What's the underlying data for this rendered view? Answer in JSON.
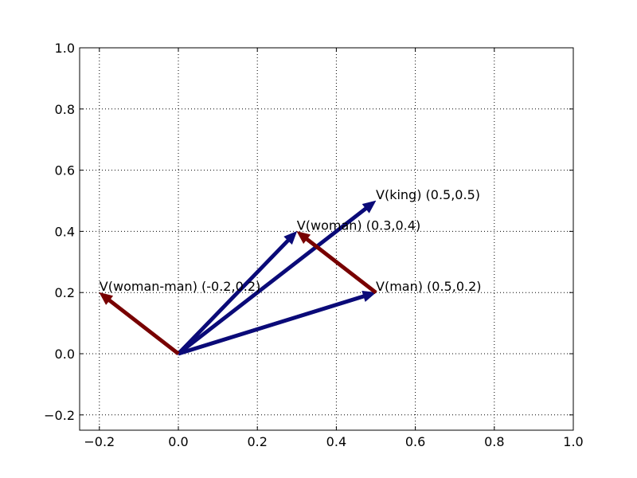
{
  "chart_data": {
    "type": "quiver",
    "title": "",
    "xlabel": "",
    "ylabel": "",
    "xlim": [
      -0.25,
      1.0
    ],
    "ylim": [
      -0.25,
      1.0
    ],
    "grid": true,
    "x_ticks": [
      {
        "value": -0.2,
        "label": "−0.2"
      },
      {
        "value": 0.0,
        "label": "0.0"
      },
      {
        "value": 0.2,
        "label": "0.2"
      },
      {
        "value": 0.4,
        "label": "0.4"
      },
      {
        "value": 0.6,
        "label": "0.6"
      },
      {
        "value": 0.8,
        "label": "0.8"
      },
      {
        "value": 1.0,
        "label": "1.0"
      }
    ],
    "y_ticks": [
      {
        "value": -0.2,
        "label": "−0.2"
      },
      {
        "value": 0.0,
        "label": "0.0"
      },
      {
        "value": 0.2,
        "label": "0.2"
      },
      {
        "value": 0.4,
        "label": "0.4"
      },
      {
        "value": 0.6,
        "label": "0.6"
      },
      {
        "value": 0.8,
        "label": "0.8"
      },
      {
        "value": 1.0,
        "label": "1.0"
      }
    ],
    "vectors": [
      {
        "id": "king",
        "start": [
          0,
          0
        ],
        "end": [
          0.5,
          0.5
        ],
        "color": "#0a0a78",
        "label": "V(king) (0.5,0.5)"
      },
      {
        "id": "woman",
        "start": [
          0,
          0
        ],
        "end": [
          0.3,
          0.4
        ],
        "color": "#0a0a78",
        "label": "V(woman) (0.3,0.4)"
      },
      {
        "id": "man",
        "start": [
          0,
          0
        ],
        "end": [
          0.5,
          0.2
        ],
        "color": "#0a0a78",
        "label": "V(man) (0.5,0.2)"
      },
      {
        "id": "woman-minus-man",
        "start": [
          0,
          0
        ],
        "end": [
          -0.2,
          0.2
        ],
        "color": "#780000",
        "label": "V(woman-man) (-0.2,0.2)"
      },
      {
        "id": "man-to-woman",
        "start": [
          0.5,
          0.2
        ],
        "end": [
          0.3,
          0.4
        ],
        "color": "#780000",
        "label": ""
      }
    ]
  }
}
